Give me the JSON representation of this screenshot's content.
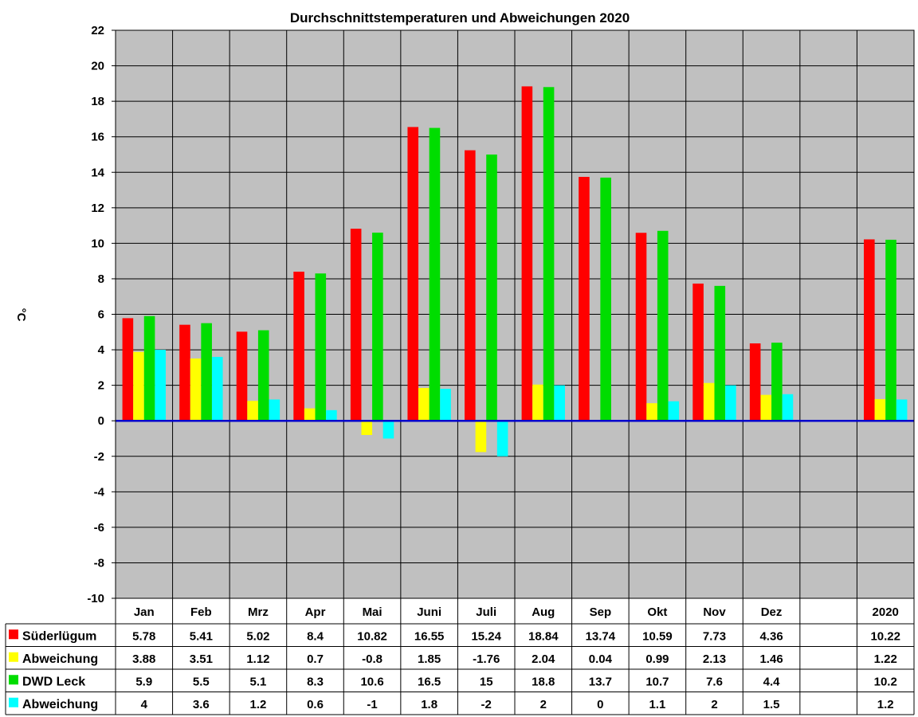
{
  "chart_data": {
    "type": "bar",
    "title": "Durchschnittstemperaturen und Abweichungen 2020",
    "ylabel": "°C",
    "xlabel": "",
    "ylim": [
      -10,
      22
    ],
    "ytick_step": 2,
    "grid": true,
    "legend": "data-table-bottom",
    "colors": {
      "plot_bg": "#c0c0c0",
      "zero_line": "#0000cc",
      "grid": "#000000"
    },
    "categories": [
      "Jan",
      "Feb",
      "Mrz",
      "Apr",
      "Mai",
      "Juni",
      "Juli",
      "Aug",
      "Sep",
      "Okt",
      "Nov",
      "Dez",
      "",
      "2020"
    ],
    "series": [
      {
        "name": "Süderlügum",
        "color": "#ff0000",
        "values": [
          5.78,
          5.41,
          5.02,
          8.4,
          10.82,
          16.55,
          15.24,
          18.84,
          13.74,
          10.59,
          7.73,
          4.36,
          null,
          10.22
        ]
      },
      {
        "name": "Abweichung",
        "color": "#ffff00",
        "values": [
          3.88,
          3.51,
          1.12,
          0.7,
          -0.8,
          1.85,
          -1.76,
          2.04,
          0.04,
          0.99,
          2.13,
          1.46,
          null,
          1.22
        ]
      },
      {
        "name": "DWD Leck",
        "color": "#00dd00",
        "values": [
          5.9,
          5.5,
          5.1,
          8.3,
          10.6,
          16.5,
          15,
          18.8,
          13.7,
          10.7,
          7.6,
          4.4,
          null,
          10.2
        ]
      },
      {
        "name": "Abweichung",
        "color": "#00ffff",
        "values": [
          4,
          3.6,
          1.2,
          0.6,
          -1,
          1.8,
          -2,
          2,
          0,
          1.1,
          2,
          1.5,
          null,
          1.2
        ]
      }
    ]
  }
}
